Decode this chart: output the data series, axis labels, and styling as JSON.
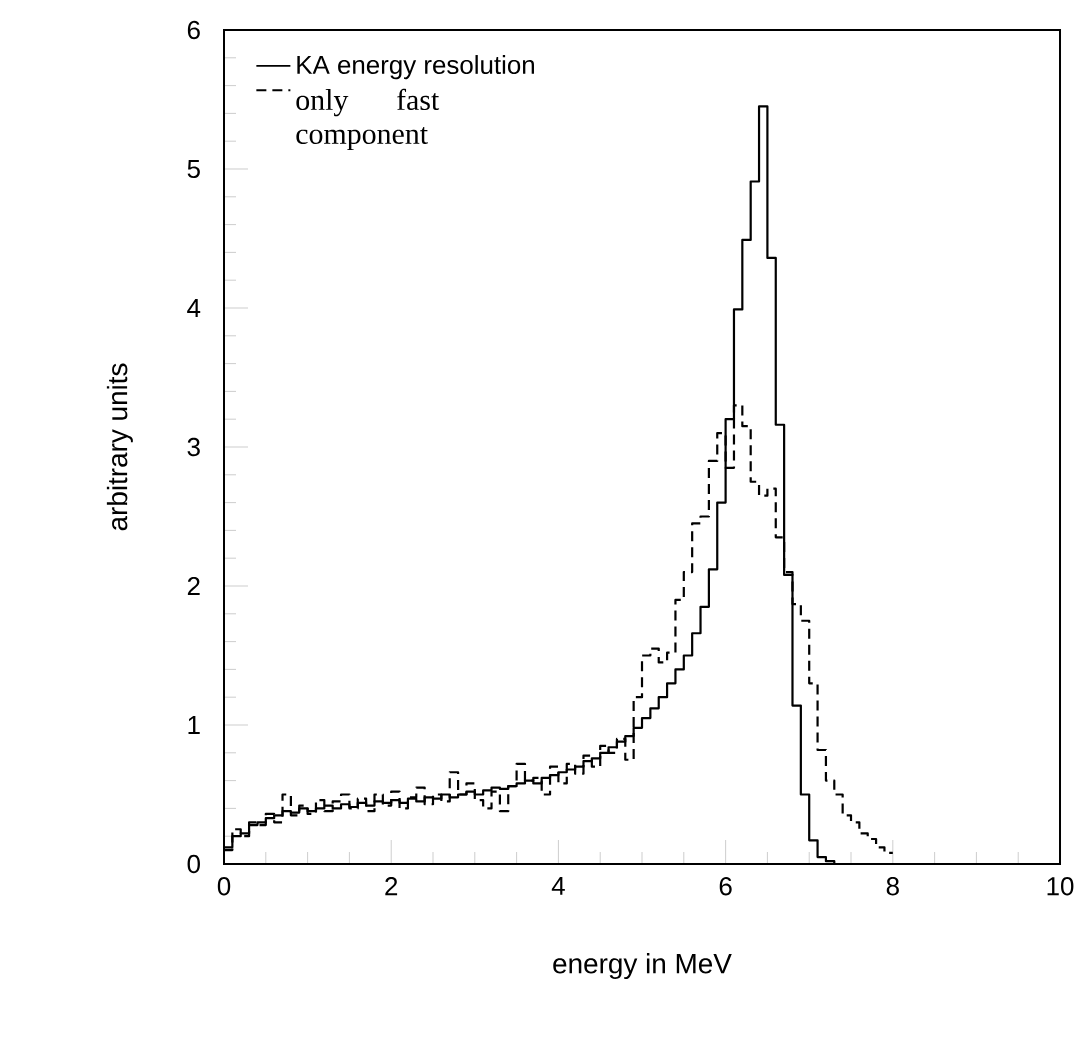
{
  "chart_data": {
    "type": "histogram",
    "xlabel": "energy in MeV",
    "ylabel": "arbitrary units",
    "xlim": [
      0,
      10
    ],
    "ylim": [
      0,
      6
    ],
    "xticks": [
      0,
      2,
      4,
      6,
      8,
      10
    ],
    "yticks": [
      0,
      1,
      2,
      3,
      4,
      5,
      6
    ],
    "legend": "top left",
    "bins": [
      0,
      0.1,
      0.2,
      0.3,
      0.4,
      0.5,
      0.6,
      0.7,
      0.8,
      0.9,
      1.0,
      1.1,
      1.2,
      1.3,
      1.4,
      1.5,
      1.6,
      1.7,
      1.8,
      1.9,
      2.0,
      2.1,
      2.2,
      2.3,
      2.4,
      2.5,
      2.6,
      2.7,
      2.8,
      2.9,
      3.0,
      3.1,
      3.2,
      3.3,
      3.4,
      3.5,
      3.6,
      3.7,
      3.8,
      3.9,
      4.0,
      4.1,
      4.2,
      4.3,
      4.4,
      4.5,
      4.6,
      4.7,
      4.8,
      4.9,
      5.0,
      5.1,
      5.2,
      5.3,
      5.4,
      5.5,
      5.6,
      5.7,
      5.8,
      5.9,
      6.0,
      6.1,
      6.2,
      6.3,
      6.4,
      6.5,
      6.6,
      6.7,
      6.8,
      6.9,
      7.0,
      7.1,
      7.2,
      7.3,
      7.4,
      7.5,
      7.6,
      7.7,
      7.8,
      7.9,
      8.0
    ],
    "series": [
      {
        "name": "KA energy resolution",
        "color": "#000000",
        "line_style": "solid",
        "values": [
          0.12,
          0.2,
          0.22,
          0.28,
          0.3,
          0.33,
          0.35,
          0.38,
          0.37,
          0.4,
          0.38,
          0.4,
          0.42,
          0.4,
          0.43,
          0.41,
          0.44,
          0.42,
          0.45,
          0.44,
          0.46,
          0.44,
          0.47,
          0.45,
          0.48,
          0.47,
          0.5,
          0.48,
          0.5,
          0.52,
          0.5,
          0.53,
          0.55,
          0.54,
          0.56,
          0.58,
          0.6,
          0.58,
          0.62,
          0.64,
          0.66,
          0.68,
          0.7,
          0.74,
          0.76,
          0.8,
          0.84,
          0.88,
          0.92,
          0.98,
          1.05,
          1.12,
          1.2,
          1.3,
          1.4,
          1.5,
          1.66,
          1.85,
          2.12,
          2.6,
          3.2,
          3.99,
          4.49,
          4.91,
          5.45,
          4.36,
          3.16,
          2.08,
          1.14,
          0.5,
          0.17,
          0.05,
          0.02,
          0,
          0,
          0,
          0,
          0,
          0,
          0
        ]
      },
      {
        "name": "only fast component",
        "color": "#000000",
        "line_style": "dashed",
        "values": [
          0.1,
          0.25,
          0.2,
          0.3,
          0.28,
          0.36,
          0.3,
          0.5,
          0.35,
          0.42,
          0.36,
          0.46,
          0.38,
          0.45,
          0.5,
          0.4,
          0.47,
          0.38,
          0.5,
          0.42,
          0.52,
          0.4,
          0.48,
          0.55,
          0.43,
          0.5,
          0.45,
          0.66,
          0.5,
          0.58,
          0.46,
          0.4,
          0.52,
          0.38,
          0.56,
          0.72,
          0.6,
          0.62,
          0.5,
          0.7,
          0.58,
          0.72,
          0.65,
          0.78,
          0.7,
          0.85,
          0.8,
          0.9,
          0.75,
          1.2,
          1.5,
          1.55,
          1.45,
          1.52,
          1.9,
          2.1,
          2.45,
          2.5,
          2.9,
          3.1,
          2.85,
          3.3,
          3.15,
          2.75,
          2.65,
          2.7,
          2.35,
          2.1,
          1.87,
          1.75,
          1.3,
          0.82,
          0.6,
          0.5,
          0.35,
          0.3,
          0.22,
          0.18,
          0.12,
          0.08
        ]
      }
    ]
  }
}
